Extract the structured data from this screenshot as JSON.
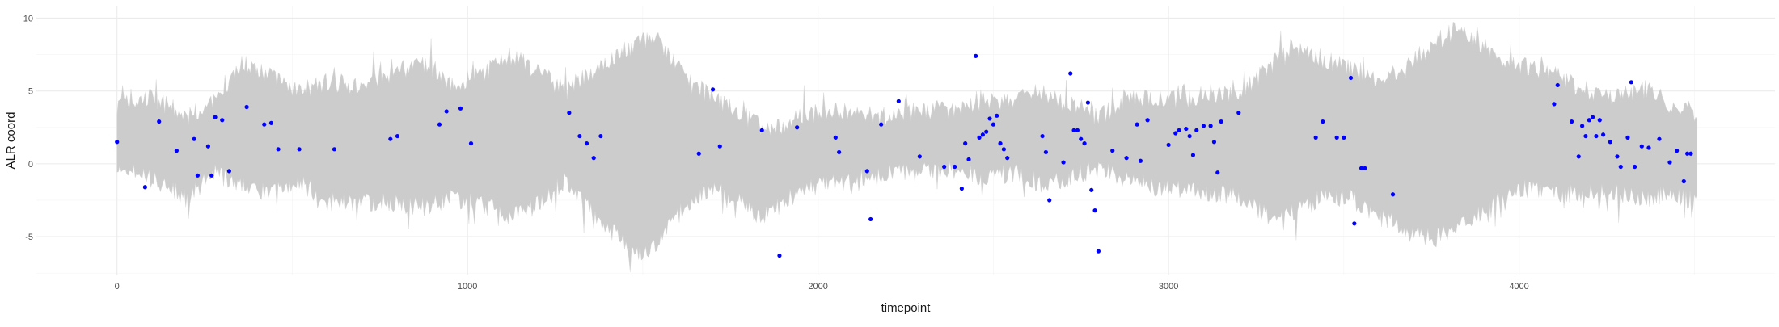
{
  "chart_data": {
    "type": "scatter",
    "title": "",
    "xlabel": "timepoint",
    "ylabel": "ALR coord",
    "xlim": [
      -230,
      4730
    ],
    "ylim": [
      -7.6,
      10.8
    ],
    "xticks": [
      0,
      1000,
      2000,
      3000,
      4000
    ],
    "xtick_labels": [
      "0",
      "1000",
      "2000",
      "3000",
      "4000"
    ],
    "yticks": [
      -5,
      0,
      5,
      10
    ],
    "ytick_labels": [
      "-5",
      "0",
      "5",
      "10"
    ],
    "grid": true,
    "legend": "none",
    "band": {
      "description": "gray band of simulated trajectories",
      "color": "#cccccc",
      "x": [
        0,
        100,
        200,
        280,
        360,
        430,
        520,
        600,
        700,
        800,
        880,
        960,
        1040,
        1120,
        1200,
        1280,
        1360,
        1440,
        1480,
        1530,
        1580,
        1640,
        1700,
        1760,
        1840,
        1880,
        1960,
        2040,
        2120,
        2200,
        2280,
        2380,
        2460,
        2560,
        2640,
        2700,
        2760,
        2800,
        2880,
        2960,
        3040,
        3120,
        3200,
        3280,
        3360,
        3440,
        3520,
        3600,
        3680,
        3760,
        3820,
        3880,
        3960,
        4040,
        4100,
        4180,
        4260,
        4340,
        4420,
        4510
      ],
      "upper": [
        4.0,
        4.6,
        3.2,
        4.2,
        7.0,
        6.2,
        5.0,
        5.6,
        5.4,
        6.4,
        7.0,
        5.4,
        6.2,
        7.4,
        6.4,
        5.0,
        6.5,
        7.6,
        8.2,
        8.8,
        7.3,
        5.5,
        4.6,
        3.6,
        2.6,
        2.4,
        3.4,
        3.6,
        3.4,
        3.2,
        3.6,
        3.8,
        4.2,
        4.4,
        5.0,
        4.2,
        3.6,
        3.2,
        4.4,
        4.6,
        4.4,
        4.9,
        4.7,
        6.6,
        7.9,
        7.2,
        6.5,
        5.7,
        6.6,
        8.4,
        9.2,
        8.4,
        7.1,
        6.6,
        6.1,
        5.1,
        4.7,
        5.1,
        4.2,
        3.2
      ],
      "lower": [
        -0.3,
        -1.0,
        -2.4,
        -0.6,
        -1.5,
        -2.0,
        -1.2,
        -2.6,
        -2.6,
        -2.7,
        -3.0,
        -2.3,
        -2.8,
        -3.6,
        -2.8,
        -1.1,
        -3.6,
        -5.2,
        -6.4,
        -5.9,
        -4.2,
        -2.4,
        -1.6,
        -2.3,
        -3.7,
        -3.1,
        -1.6,
        -1.4,
        -1.0,
        -0.6,
        -0.6,
        -0.5,
        -0.9,
        -0.6,
        -1.4,
        -1.1,
        -0.6,
        -0.4,
        -1.1,
        -1.6,
        -1.7,
        -2.0,
        -2.2,
        -3.6,
        -3.4,
        -2.3,
        -2.4,
        -3.6,
        -4.6,
        -5.1,
        -4.4,
        -3.5,
        -2.1,
        -1.6,
        -2.1,
        -2.0,
        -2.0,
        -2.4,
        -2.2,
        -2.6
      ]
    },
    "series": [
      {
        "color": "#0000ff",
        "x": [
          0,
          80,
          120,
          170,
          220,
          230,
          260,
          270,
          280,
          300,
          320,
          370,
          420,
          440,
          460,
          520,
          620,
          780,
          800,
          920,
          940,
          980,
          1010,
          1290,
          1320,
          1340,
          1360,
          1380,
          1660,
          1700,
          1720,
          1840,
          1890,
          1940,
          2050,
          2060,
          2140,
          2150,
          2180,
          2230,
          2290,
          2360,
          2390,
          2410,
          2420,
          2430,
          2450,
          2460,
          2470,
          2480,
          2490,
          2500,
          2510,
          2520,
          2530,
          2540,
          2640,
          2650,
          2660,
          2700,
          2720,
          2730,
          2740,
          2750,
          2760,
          2770,
          2780,
          2790,
          2800,
          2840,
          2880,
          2910,
          2920,
          2940,
          3000,
          3020,
          3030,
          3050,
          3060,
          3070,
          3080,
          3100,
          3120,
          3130,
          3140,
          3150,
          3200,
          3420,
          3440,
          3480,
          3500,
          3520,
          3530,
          3550,
          3560,
          3640,
          4100,
          4110,
          4150,
          4170,
          4180,
          4190,
          4200,
          4210,
          4220,
          4230,
          4240,
          4260,
          4280,
          4290,
          4310,
          4320,
          4330,
          4350,
          4370,
          4400,
          4430,
          4450,
          4470,
          4480,
          4490
        ],
        "y": [
          1.5,
          -1.6,
          2.9,
          0.9,
          1.7,
          -0.8,
          1.2,
          -0.8,
          3.2,
          3.0,
          -0.5,
          3.9,
          2.7,
          2.8,
          1.0,
          1.0,
          1.0,
          1.7,
          1.9,
          2.7,
          3.6,
          3.8,
          1.4,
          3.5,
          1.9,
          1.4,
          0.4,
          1.9,
          0.7,
          5.1,
          1.2,
          2.3,
          -6.3,
          2.5,
          1.8,
          0.8,
          -0.5,
          -3.8,
          2.7,
          4.3,
          0.5,
          -0.2,
          -0.2,
          -1.7,
          1.4,
          0.3,
          7.4,
          1.8,
          2.0,
          2.2,
          3.1,
          2.7,
          3.3,
          1.4,
          1.0,
          0.4,
          1.9,
          0.8,
          -2.5,
          0.1,
          6.2,
          2.3,
          2.3,
          1.7,
          1.4,
          4.2,
          -1.8,
          -3.2,
          -6.0,
          0.9,
          0.4,
          2.7,
          0.2,
          3.0,
          1.3,
          2.1,
          2.3,
          2.4,
          1.9,
          0.6,
          2.3,
          2.6,
          2.6,
          1.5,
          -0.6,
          2.9,
          3.5,
          1.8,
          2.9,
          1.8,
          1.8,
          5.9,
          -4.1,
          -0.3,
          -0.3,
          -2.1,
          4.1,
          5.4,
          2.9,
          0.5,
          2.6,
          1.9,
          3.0,
          3.2,
          1.9,
          3.0,
          2.0,
          1.5,
          0.5,
          -0.2,
          1.8,
          5.6,
          -0.2,
          1.2,
          1.1,
          1.7,
          0.1,
          0.9,
          -1.2,
          0.7,
          0.7
        ]
      }
    ]
  }
}
